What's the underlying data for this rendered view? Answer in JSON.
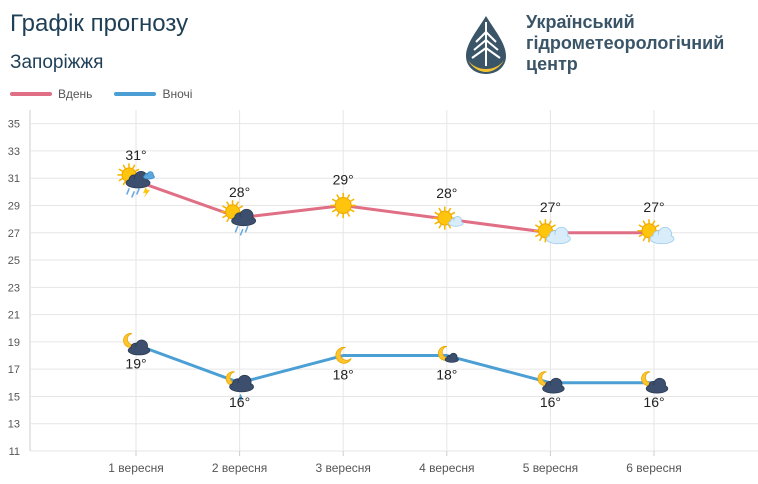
{
  "header": {
    "title": "Графік прогнозу",
    "city": "Запоріжжя",
    "legend": [
      {
        "label": "Вдень",
        "color": "#e06f85"
      },
      {
        "label": "Вночі",
        "color": "#4b9fd5"
      }
    ],
    "logo_lines": [
      "Український",
      "гідрометеорологічний",
      "центр"
    ]
  },
  "chart_data": {
    "type": "line",
    "categories": [
      "1 вересня",
      "2 вересня",
      "3 вересня",
      "4 вересня",
      "5 вересня",
      "6 вересня"
    ],
    "y_ticks": [
      11,
      13,
      15,
      17,
      19,
      21,
      23,
      25,
      27,
      29,
      31,
      33,
      35
    ],
    "ylim": [
      11,
      36
    ],
    "grid": true,
    "legend_position": "top-left",
    "series": [
      {
        "name": "Вдень",
        "color": "#e06f85",
        "values": [
          30.8,
          28.1,
          29,
          28,
          27,
          27
        ],
        "labels": [
          "31°",
          "28°",
          "29°",
          "28°",
          "27°",
          "27°"
        ],
        "icons": [
          "sun-cloud-rain-thunder-icon",
          "sun-cloud-rain-icon",
          "sun-icon",
          "sun-small-cloud-icon",
          "sun-cloud-icon",
          "sun-cloud-icon"
        ]
      },
      {
        "name": "Вночі",
        "color": "#4b9fd5",
        "values": [
          18.8,
          16,
          18,
          18,
          16,
          16
        ],
        "labels": [
          "19°",
          "16°",
          "18°",
          "18°",
          "16°",
          "16°"
        ],
        "icons": [
          "moon-cloud-icon",
          "moon-cloud-rain-icon",
          "moon-icon",
          "moon-small-cloud-icon",
          "moon-cloud-icon",
          "moon-cloud-icon"
        ]
      }
    ]
  }
}
